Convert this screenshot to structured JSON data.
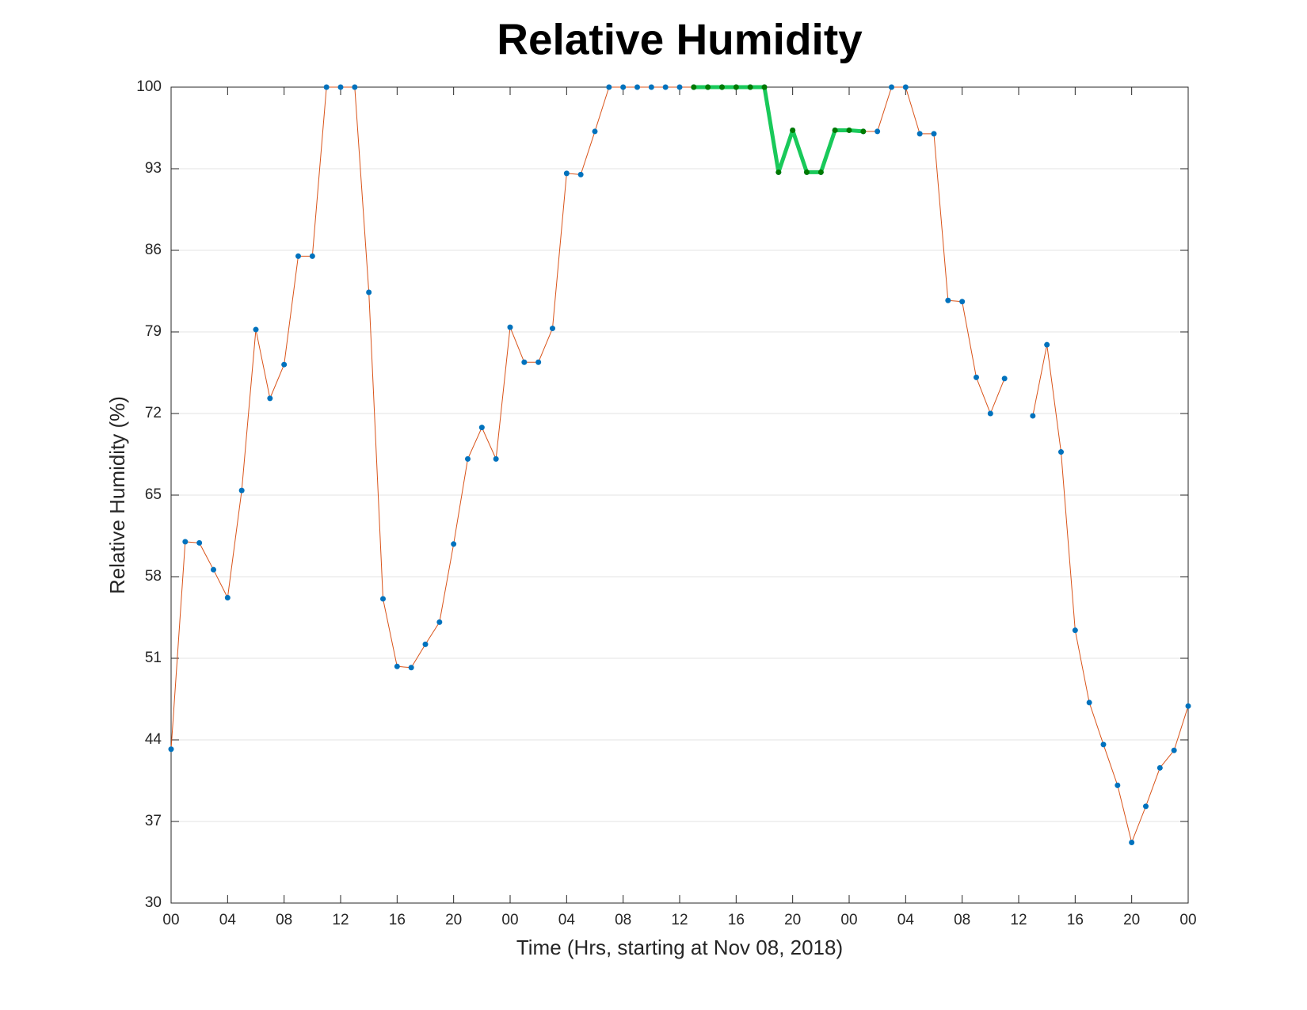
{
  "chart_data": {
    "type": "line",
    "title": "Relative Humidity",
    "xlabel": "Time (Hrs, starting at Nov 08, 2018)",
    "ylabel": "Relative Humidity (%)",
    "x": [
      0,
      1,
      2,
      3,
      4,
      5,
      6,
      7,
      8,
      9,
      10,
      11,
      12,
      13,
      14,
      15,
      16,
      17,
      18,
      19,
      20,
      21,
      22,
      23,
      24,
      25,
      26,
      27,
      28,
      29,
      30,
      31,
      32,
      33,
      34,
      35,
      36,
      37,
      38,
      39,
      40,
      41,
      42,
      43,
      44,
      45,
      46,
      47,
      48,
      49,
      50,
      51,
      52,
      53,
      54,
      55,
      56,
      57,
      58,
      59,
      60,
      61,
      62,
      63,
      64,
      65,
      66,
      67,
      68,
      69,
      70,
      71,
      72
    ],
    "series": [
      {
        "color": "#d95319",
        "marker_color": "#0072bd",
        "line_width": 1,
        "values": [
          43.2,
          61.0,
          60.9,
          58.6,
          56.2,
          65.4,
          79.2,
          73.3,
          76.2,
          85.5,
          85.5,
          100,
          100,
          100,
          82.4,
          56.1,
          50.3,
          50.2,
          52.2,
          54.1,
          60.8,
          68.1,
          70.8,
          68.1,
          79.4,
          76.4,
          76.4,
          79.3,
          92.6,
          92.5,
          96.2,
          100,
          100,
          100,
          100,
          100,
          100,
          100,
          100,
          100,
          100,
          100,
          100,
          92.7,
          96.3,
          92.7,
          92.7,
          96.3,
          96.3,
          96.2,
          96.2,
          100,
          100,
          96.0,
          96.0,
          81.7,
          81.6,
          75.1,
          72.0,
          75.0,
          null,
          71.8,
          77.9,
          68.7,
          53.4,
          47.2,
          43.6,
          40.1,
          35.2,
          38.3,
          41.6,
          43.1,
          46.9
        ]
      },
      {
        "color": "#19c95a",
        "marker_color": "#007a00",
        "line_width": 5,
        "values": [
          null,
          null,
          null,
          null,
          null,
          null,
          null,
          null,
          null,
          null,
          null,
          null,
          null,
          null,
          null,
          null,
          null,
          null,
          null,
          null,
          null,
          null,
          null,
          null,
          null,
          null,
          null,
          null,
          null,
          null,
          null,
          null,
          null,
          null,
          null,
          null,
          null,
          100,
          100,
          100,
          100,
          100,
          100,
          92.7,
          96.3,
          92.7,
          92.7,
          96.3,
          96.3,
          96.2,
          null,
          null,
          null,
          null,
          null,
          null,
          null,
          null,
          null,
          null,
          null,
          null,
          null,
          null,
          null,
          null,
          null,
          null,
          null,
          null,
          null,
          null,
          null
        ]
      }
    ],
    "xlim": [
      0,
      72
    ],
    "xticks": [
      {
        "value": 0,
        "label": "00"
      },
      {
        "value": 4,
        "label": "04"
      },
      {
        "value": 8,
        "label": "08"
      },
      {
        "value": 12,
        "label": "12"
      },
      {
        "value": 16,
        "label": "16"
      },
      {
        "value": 20,
        "label": "20"
      },
      {
        "value": 24,
        "label": "00"
      },
      {
        "value": 28,
        "label": "04"
      },
      {
        "value": 32,
        "label": "08"
      },
      {
        "value": 36,
        "label": "12"
      },
      {
        "value": 40,
        "label": "16"
      },
      {
        "value": 44,
        "label": "20"
      },
      {
        "value": 48,
        "label": "00"
      },
      {
        "value": 52,
        "label": "04"
      },
      {
        "value": 56,
        "label": "08"
      },
      {
        "value": 60,
        "label": "12"
      },
      {
        "value": 64,
        "label": "16"
      },
      {
        "value": 68,
        "label": "20"
      },
      {
        "value": 72,
        "label": "00"
      }
    ],
    "ylim": [
      30,
      100
    ],
    "yticks": [
      30,
      37,
      44,
      51,
      58,
      65,
      72,
      79,
      86,
      93,
      100
    ],
    "grid": true
  }
}
